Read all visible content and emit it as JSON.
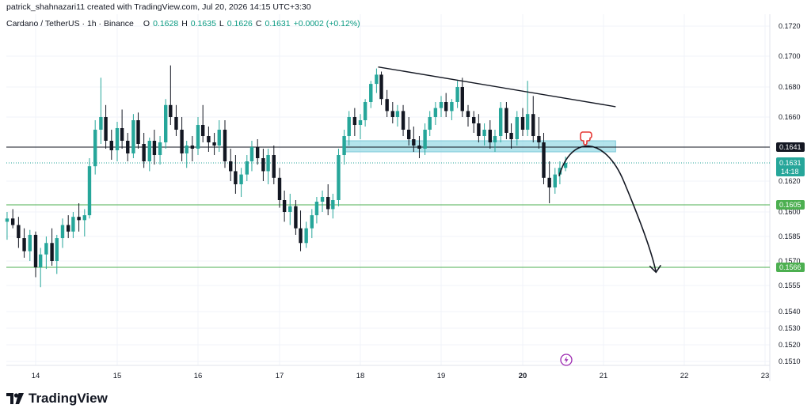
{
  "header": {
    "title": "patrick_shahnazari11 created with TradingView.com, Jul 20, 2026 14:15 UTC+3:30"
  },
  "legend": {
    "symbol": "Cardano / TetherUS · 1h · Binance",
    "o_label": "O",
    "o_value": "0.1628",
    "h_label": "H",
    "h_value": "0.1635",
    "l_label": "L",
    "l_value": "0.1626",
    "c_label": "C",
    "c_value": "0.1631",
    "change": "+0.0002 (+0.12%)"
  },
  "colors": {
    "up": "#26a69a",
    "down": "#131722",
    "support": "#4caf50",
    "resistance": "#131722",
    "zone": "#9bdbe6",
    "current": "#26a69a",
    "projection": "#131722"
  },
  "chart_data": {
    "type": "candlestick",
    "ylim": [
      0.1505,
      0.1726
    ],
    "y_ticks": [
      "0.1720",
      "0.1700",
      "0.1680",
      "0.1660",
      "0.1620",
      "0.1600",
      "0.1585",
      "0.1570",
      "0.1555",
      "0.1540",
      "0.1530",
      "0.1520",
      "0.1510"
    ],
    "y_tick_values": [
      0.172,
      0.17,
      0.168,
      0.166,
      0.162,
      0.16,
      0.1585,
      0.157,
      0.1555,
      0.154,
      0.153,
      0.152,
      0.151
    ],
    "x_ticks": [
      "14",
      "15",
      "16",
      "17",
      "18",
      "19",
      "20",
      "21",
      "22",
      "23"
    ],
    "x_tick_values": [
      14,
      15,
      16,
      17,
      18,
      19,
      20,
      21,
      22,
      23
    ],
    "xlim": [
      13.65,
      23.15
    ],
    "levels": [
      {
        "price": 0.1641,
        "label": "0.1641",
        "kind": "resistance"
      },
      {
        "price": 0.1605,
        "label": "0.1605",
        "kind": "support"
      },
      {
        "price": 0.1566,
        "label": "0.1566",
        "kind": "support"
      }
    ],
    "current_price": {
      "price": 0.1631,
      "label": "0.1631",
      "countdown": "14:18"
    },
    "zone": {
      "x_start": 17.8,
      "x_end": 21.15,
      "y_low": 0.1638,
      "y_high": 0.1645
    },
    "trendline": {
      "x1": 18.22,
      "y1": 0.1693,
      "x2": 20.66,
      "y2": 0.1669
    },
    "projection_path": [
      [
        20.45,
        0.1623
      ],
      [
        20.82,
        0.1638
      ],
      [
        21.25,
        0.162
      ],
      [
        21.65,
        0.1563
      ]
    ],
    "candles": [
      [
        13.65,
        0.1594,
        0.16,
        0.1583,
        0.1596
      ],
      [
        13.72,
        0.1596,
        0.1602,
        0.159,
        0.1592
      ],
      [
        13.79,
        0.1592,
        0.1597,
        0.1578,
        0.1584
      ],
      [
        13.86,
        0.1584,
        0.159,
        0.1572,
        0.1576
      ],
      [
        13.93,
        0.1576,
        0.1589,
        0.157,
        0.1586
      ],
      [
        14.0,
        0.1586,
        0.1588,
        0.156,
        0.1566
      ],
      [
        14.06,
        0.1566,
        0.1578,
        0.1554,
        0.1574
      ],
      [
        14.13,
        0.1574,
        0.1585,
        0.1565,
        0.1581
      ],
      [
        14.2,
        0.1581,
        0.159,
        0.1567,
        0.157
      ],
      [
        14.26,
        0.157,
        0.1586,
        0.1562,
        0.1584
      ],
      [
        14.33,
        0.1584,
        0.1596,
        0.1578,
        0.1592
      ],
      [
        14.4,
        0.1592,
        0.1598,
        0.1584,
        0.1588
      ],
      [
        14.46,
        0.1588,
        0.16,
        0.1584,
        0.1597
      ],
      [
        14.53,
        0.1597,
        0.1606,
        0.1588,
        0.1595
      ],
      [
        14.6,
        0.1595,
        0.1602,
        0.1585,
        0.1598
      ],
      [
        14.66,
        0.1598,
        0.1634,
        0.1596,
        0.1629
      ],
      [
        14.73,
        0.1629,
        0.1658,
        0.1624,
        0.1652
      ],
      [
        14.8,
        0.1652,
        0.1686,
        0.1643,
        0.166
      ],
      [
        14.86,
        0.166,
        0.1668,
        0.164,
        0.1645
      ],
      [
        14.93,
        0.1645,
        0.1652,
        0.1633,
        0.1639
      ],
      [
        15.0,
        0.1639,
        0.1657,
        0.1632,
        0.1653
      ],
      [
        15.06,
        0.1653,
        0.1665,
        0.164,
        0.1645
      ],
      [
        15.13,
        0.1645,
        0.165,
        0.1632,
        0.1637
      ],
      [
        15.2,
        0.1637,
        0.1662,
        0.1634,
        0.1658
      ],
      [
        15.26,
        0.1658,
        0.1663,
        0.164,
        0.1643
      ],
      [
        15.33,
        0.1643,
        0.165,
        0.1628,
        0.1632
      ],
      [
        15.4,
        0.1632,
        0.1647,
        0.1626,
        0.1645
      ],
      [
        15.46,
        0.1645,
        0.1652,
        0.163,
        0.1636
      ],
      [
        15.53,
        0.1636,
        0.1648,
        0.163,
        0.1644
      ],
      [
        15.6,
        0.1644,
        0.1672,
        0.164,
        0.1668
      ],
      [
        15.66,
        0.1668,
        0.1694,
        0.1655,
        0.166
      ],
      [
        15.73,
        0.166,
        0.1668,
        0.1648,
        0.1652
      ],
      [
        15.8,
        0.1652,
        0.166,
        0.1632,
        0.1637
      ],
      [
        15.86,
        0.1637,
        0.1645,
        0.1628,
        0.1642
      ],
      [
        15.93,
        0.1642,
        0.1648,
        0.1632,
        0.164
      ],
      [
        16.0,
        0.164,
        0.166,
        0.1636,
        0.1655
      ],
      [
        16.06,
        0.1655,
        0.1668,
        0.1644,
        0.1648
      ],
      [
        16.13,
        0.1648,
        0.1654,
        0.1638,
        0.1644
      ],
      [
        16.2,
        0.1644,
        0.165,
        0.1636,
        0.1642
      ],
      [
        16.26,
        0.1642,
        0.1658,
        0.1638,
        0.1652
      ],
      [
        16.33,
        0.1652,
        0.1658,
        0.1628,
        0.1632
      ],
      [
        16.4,
        0.1632,
        0.164,
        0.162,
        0.1626
      ],
      [
        16.46,
        0.1626,
        0.1636,
        0.1612,
        0.1618
      ],
      [
        16.53,
        0.1618,
        0.1628,
        0.161,
        0.1624
      ],
      [
        16.6,
        0.1624,
        0.1636,
        0.162,
        0.1632
      ],
      [
        16.66,
        0.1632,
        0.1645,
        0.1626,
        0.1641
      ],
      [
        16.73,
        0.1641,
        0.1646,
        0.163,
        0.1634
      ],
      [
        16.8,
        0.1634,
        0.164,
        0.162,
        0.1626
      ],
      [
        16.86,
        0.1626,
        0.164,
        0.1618,
        0.1636
      ],
      [
        16.93,
        0.1636,
        0.1642,
        0.1618,
        0.1622
      ],
      [
        17.0,
        0.1622,
        0.1628,
        0.1603,
        0.1608
      ],
      [
        17.06,
        0.1608,
        0.1614,
        0.1594,
        0.16
      ],
      [
        17.13,
        0.16,
        0.1612,
        0.1592,
        0.1604
      ],
      [
        17.2,
        0.1604,
        0.1608,
        0.1586,
        0.159
      ],
      [
        17.26,
        0.159,
        0.1601,
        0.1576,
        0.1581
      ],
      [
        17.33,
        0.1581,
        0.1594,
        0.1578,
        0.159
      ],
      [
        17.4,
        0.159,
        0.1602,
        0.1584,
        0.1598
      ],
      [
        17.46,
        0.1598,
        0.161,
        0.1593,
        0.1607
      ],
      [
        17.53,
        0.1607,
        0.1614,
        0.16,
        0.161
      ],
      [
        17.6,
        0.161,
        0.1618,
        0.1598,
        0.1602
      ],
      [
        17.66,
        0.1602,
        0.1612,
        0.1596,
        0.1608
      ],
      [
        17.73,
        0.1608,
        0.164,
        0.1604,
        0.1636
      ],
      [
        17.8,
        0.1636,
        0.1652,
        0.163,
        0.1648
      ],
      [
        17.86,
        0.1648,
        0.1664,
        0.1642,
        0.166
      ],
      [
        17.93,
        0.166,
        0.1666,
        0.1648,
        0.1655
      ],
      [
        18.0,
        0.1655,
        0.1662,
        0.1646,
        0.1658
      ],
      [
        18.06,
        0.1658,
        0.1672,
        0.1654,
        0.167
      ],
      [
        18.13,
        0.167,
        0.1684,
        0.1666,
        0.1682
      ],
      [
        18.2,
        0.1682,
        0.1692,
        0.1676,
        0.1688
      ],
      [
        18.26,
        0.1688,
        0.169,
        0.1668,
        0.1672
      ],
      [
        18.33,
        0.1672,
        0.1678,
        0.166,
        0.1664
      ],
      [
        18.4,
        0.1664,
        0.167,
        0.1656,
        0.166
      ],
      [
        18.46,
        0.166,
        0.1668,
        0.1654,
        0.1664
      ],
      [
        18.53,
        0.1664,
        0.1668,
        0.1648,
        0.1652
      ],
      [
        18.6,
        0.1652,
        0.166,
        0.1642,
        0.1646
      ],
      [
        18.66,
        0.1646,
        0.1654,
        0.1638,
        0.1642
      ],
      [
        18.73,
        0.1642,
        0.1648,
        0.1634,
        0.164
      ],
      [
        18.8,
        0.164,
        0.1656,
        0.1636,
        0.1652
      ],
      [
        18.86,
        0.1652,
        0.1664,
        0.1648,
        0.166
      ],
      [
        18.93,
        0.166,
        0.167,
        0.1655,
        0.1666
      ],
      [
        19.0,
        0.1666,
        0.1674,
        0.166,
        0.167
      ],
      [
        19.06,
        0.167,
        0.1676,
        0.166,
        0.1664
      ],
      [
        19.13,
        0.1664,
        0.1672,
        0.1658,
        0.167
      ],
      [
        19.2,
        0.167,
        0.1684,
        0.1666,
        0.168
      ],
      [
        19.26,
        0.168,
        0.1686,
        0.166,
        0.1664
      ],
      [
        19.33,
        0.1664,
        0.1668,
        0.1654,
        0.166
      ],
      [
        19.4,
        0.166,
        0.1664,
        0.165,
        0.1656
      ],
      [
        19.46,
        0.1656,
        0.1662,
        0.1644,
        0.1648
      ],
      [
        19.53,
        0.1648,
        0.1656,
        0.1642,
        0.1652
      ],
      [
        19.6,
        0.1652,
        0.1658,
        0.164,
        0.1644
      ],
      [
        19.66,
        0.1644,
        0.1652,
        0.1638,
        0.1648
      ],
      [
        19.73,
        0.1648,
        0.167,
        0.1644,
        0.1666
      ],
      [
        19.8,
        0.1666,
        0.167,
        0.1646,
        0.165
      ],
      [
        19.86,
        0.165,
        0.1656,
        0.164,
        0.1646
      ],
      [
        19.93,
        0.1646,
        0.1664,
        0.1642,
        0.166
      ],
      [
        20.0,
        0.166,
        0.1666,
        0.1648,
        0.1652
      ],
      [
        20.06,
        0.1652,
        0.1684,
        0.1648,
        0.1662
      ],
      [
        20.13,
        0.1662,
        0.1674,
        0.1644,
        0.1648
      ],
      [
        20.2,
        0.1648,
        0.166,
        0.164,
        0.1644
      ],
      [
        20.26,
        0.1644,
        0.165,
        0.1618,
        0.1622
      ],
      [
        20.33,
        0.1622,
        0.1632,
        0.1606,
        0.1616
      ],
      [
        20.4,
        0.1616,
        0.1628,
        0.1612,
        0.1624
      ],
      [
        20.46,
        0.1624,
        0.1632,
        0.1618,
        0.1628
      ],
      [
        20.53,
        0.1628,
        0.1635,
        0.1626,
        0.1631
      ]
    ]
  }
}
